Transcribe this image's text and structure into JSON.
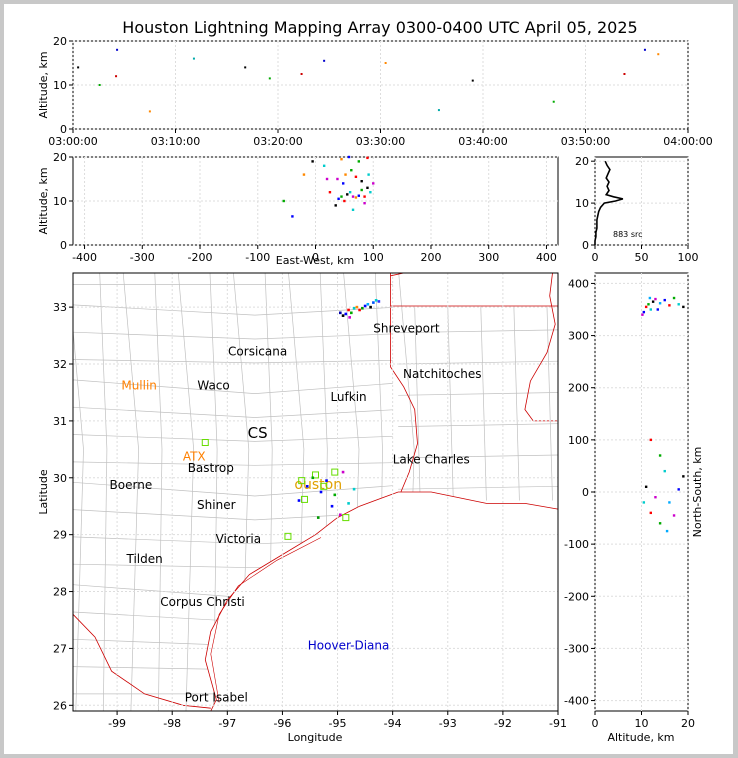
{
  "title": "Houston Lightning Mapping Array 0300-0400 UTC April 05, 2025",
  "colors": {
    "state_lines": "#cc0000",
    "county_lines": "#c0c0c0",
    "city_default": "#000000",
    "city_orange": "#ff8000",
    "city_blue": "#0000cc",
    "station": "#66dd00",
    "houston": "#e0a000"
  },
  "chart_data": [
    {
      "id": "time-altitude",
      "type": "scatter",
      "xlabel": "",
      "ylabel": "Altitude, km",
      "ylim": [
        0,
        20
      ],
      "yticks": [
        "0",
        "10",
        "20"
      ],
      "xticks": [
        "03:00:00",
        "03:10:00",
        "03:20:00",
        "03:30:00",
        "03:40:00",
        "03:50:00",
        "04:00:00"
      ],
      "xlim_minutes": [
        0,
        60
      ],
      "points": [
        {
          "x": 0.5,
          "y": 14
        },
        {
          "x": 2.6,
          "y": 10
        },
        {
          "x": 4.2,
          "y": 12
        },
        {
          "x": 4.3,
          "y": 18
        },
        {
          "x": 7.5,
          "y": 4
        },
        {
          "x": 11.8,
          "y": 16
        },
        {
          "x": 16.8,
          "y": 14
        },
        {
          "x": 19.2,
          "y": 11.5
        },
        {
          "x": 22.3,
          "y": 12.5
        },
        {
          "x": 24.5,
          "y": 15.5
        },
        {
          "x": 30.5,
          "y": 15
        },
        {
          "x": 35.7,
          "y": 4.3
        },
        {
          "x": 39,
          "y": 11
        },
        {
          "x": 46.9,
          "y": 6.2
        },
        {
          "x": 53.8,
          "y": 12.5
        },
        {
          "x": 55.8,
          "y": 18
        },
        {
          "x": 57.1,
          "y": 17
        }
      ]
    },
    {
      "id": "east-west-altitude",
      "type": "scatter",
      "xlabel": "East-West, km",
      "ylabel": "Altitude, km",
      "xlim": [
        -420,
        420
      ],
      "ylim": [
        0,
        20
      ],
      "xticks": [
        "-400",
        "-300",
        "-200",
        "-100",
        "0",
        "100",
        "200",
        "300",
        "400"
      ],
      "yticks": [
        "0",
        "10",
        "20"
      ],
      "points": [
        {
          "x": 40,
          "y": 10.5
        },
        {
          "x": 45,
          "y": 11
        },
        {
          "x": 50,
          "y": 10
        },
        {
          "x": 55,
          "y": 11.5
        },
        {
          "x": 60,
          "y": 12
        },
        {
          "x": 65,
          "y": 11
        },
        {
          "x": 70,
          "y": 10.8
        },
        {
          "x": 75,
          "y": 11.2
        },
        {
          "x": 80,
          "y": 12.5
        },
        {
          "x": 85,
          "y": 11
        },
        {
          "x": 90,
          "y": 13
        },
        {
          "x": 95,
          "y": 12
        },
        {
          "x": 38,
          "y": 15
        },
        {
          "x": 52,
          "y": 16
        },
        {
          "x": 48,
          "y": 14
        },
        {
          "x": 62,
          "y": 17
        },
        {
          "x": 70,
          "y": 15.5
        },
        {
          "x": 80,
          "y": 14.5
        },
        {
          "x": 92,
          "y": 16
        },
        {
          "x": 100,
          "y": 14
        },
        {
          "x": 45,
          "y": 19.5
        },
        {
          "x": 58,
          "y": 20
        },
        {
          "x": 75,
          "y": 19
        },
        {
          "x": 90,
          "y": 19.8
        },
        {
          "x": -5,
          "y": 19
        },
        {
          "x": 15,
          "y": 18
        },
        {
          "x": 20,
          "y": 15
        },
        {
          "x": -20,
          "y": 16
        },
        {
          "x": -40,
          "y": 6.5
        },
        {
          "x": -55,
          "y": 10
        },
        {
          "x": 25,
          "y": 12
        },
        {
          "x": 35,
          "y": 9
        },
        {
          "x": 65,
          "y": 8
        },
        {
          "x": 85,
          "y": 9.5
        }
      ]
    },
    {
      "id": "altitude-histogram",
      "type": "line",
      "xlim": [
        0,
        100
      ],
      "ylim": [
        0,
        21
      ],
      "xticks": [
        "0",
        "50",
        "100"
      ],
      "yticks": [
        "0",
        "10",
        "20"
      ],
      "annotation": "883 src",
      "altitudes": [
        0,
        1,
        2,
        3,
        4,
        5,
        6,
        7,
        8,
        9,
        10,
        10.5,
        11,
        11.5,
        12,
        13,
        14,
        15,
        16,
        17,
        18,
        19,
        20
      ],
      "counts": [
        0,
        0,
        1,
        1,
        2,
        2,
        2,
        3,
        4,
        6,
        10,
        22,
        30,
        20,
        12,
        15,
        13,
        15,
        12,
        14,
        16,
        13,
        11
      ]
    },
    {
      "id": "plan-view",
      "type": "scatter",
      "xlabel": "Longitude",
      "ylabel": "Latitude",
      "xlim": [
        -99.8,
        -91
      ],
      "ylim": [
        25.9,
        33.6
      ],
      "xticks": [
        "-99",
        "-98",
        "-97",
        "-96",
        "-95",
        "-94",
        "-93",
        "-92",
        "-91"
      ],
      "yticks": [
        "26",
        "27",
        "28",
        "29",
        "30",
        "31",
        "32",
        "33"
      ],
      "points": [
        {
          "x": -94.85,
          "y": 32.88
        },
        {
          "x": -94.8,
          "y": 32.95
        },
        {
          "x": -94.75,
          "y": 32.9
        },
        {
          "x": -94.7,
          "y": 32.98
        },
        {
          "x": -94.9,
          "y": 32.85
        },
        {
          "x": -94.65,
          "y": 33.0
        },
        {
          "x": -94.5,
          "y": 33.02
        },
        {
          "x": -94.45,
          "y": 33.05
        },
        {
          "x": -94.4,
          "y": 33.0
        },
        {
          "x": -94.35,
          "y": 33.08
        },
        {
          "x": -94.3,
          "y": 33.12
        },
        {
          "x": -94.25,
          "y": 33.1
        },
        {
          "x": -94.6,
          "y": 32.95
        },
        {
          "x": -94.55,
          "y": 32.98
        },
        {
          "x": -94.95,
          "y": 32.9
        },
        {
          "x": -94.78,
          "y": 32.82
        },
        {
          "x": -95.2,
          "y": 29.95
        },
        {
          "x": -95.05,
          "y": 29.7
        },
        {
          "x": -95.1,
          "y": 29.5
        },
        {
          "x": -94.95,
          "y": 29.35
        },
        {
          "x": -94.8,
          "y": 29.55
        },
        {
          "x": -95.3,
          "y": 29.75
        },
        {
          "x": -95.35,
          "y": 29.3
        },
        {
          "x": -94.7,
          "y": 29.8
        },
        {
          "x": -95.55,
          "y": 29.85
        },
        {
          "x": -95.7,
          "y": 29.6
        },
        {
          "x": -94.9,
          "y": 30.1
        },
        {
          "x": -95.45,
          "y": 30.0
        }
      ],
      "point_colors": [
        "#0000ff",
        "#ff0000",
        "#00aa00",
        "#00cccc",
        "#000000",
        "#ff8800",
        "#0000ff",
        "#00aaff",
        "#000000",
        "#0055ff",
        "#00cccc",
        "#3333ff",
        "#ff0000",
        "#009900",
        "#0000aa",
        "#cc00cc",
        "#0000ff",
        "#00aa00",
        "#0000ff",
        "#cc00cc",
        "#00cccc",
        "#0000ff",
        "#009900",
        "#00cccc",
        "#0000ff",
        "#0000ff",
        "#cc00cc",
        "#00aa00"
      ],
      "cities": [
        {
          "name": "Shreveport",
          "lon": -93.75,
          "lat": 32.55,
          "color": "city_default"
        },
        {
          "name": "Corsicana",
          "lon": -96.45,
          "lat": 32.15,
          "color": "city_default"
        },
        {
          "name": "Natchitoches",
          "lon": -93.1,
          "lat": 31.75,
          "color": "city_default"
        },
        {
          "name": "Mullin",
          "lon": -98.6,
          "lat": 31.55,
          "color": "city_orange"
        },
        {
          "name": "Waco",
          "lon": -97.25,
          "lat": 31.55,
          "color": "city_default"
        },
        {
          "name": "Lufkin",
          "lon": -94.8,
          "lat": 31.35,
          "color": "city_default"
        },
        {
          "name": "Lake Charles",
          "lon": -93.3,
          "lat": 30.25,
          "color": "city_default"
        },
        {
          "name": "Bastrop",
          "lon": -97.3,
          "lat": 30.1,
          "color": "city_default"
        },
        {
          "name": "Boerne",
          "lon": -98.75,
          "lat": 29.8,
          "color": "city_default"
        },
        {
          "name": "Shiner",
          "lon": -97.2,
          "lat": 29.45,
          "color": "city_default"
        },
        {
          "name": "Victoria",
          "lon": -96.8,
          "lat": 28.85,
          "color": "city_default"
        },
        {
          "name": "Tilden",
          "lon": -98.5,
          "lat": 28.5,
          "color": "city_default"
        },
        {
          "name": "Corpus Christi",
          "lon": -97.45,
          "lat": 27.75,
          "color": "city_default"
        },
        {
          "name": "Hoover-Diana",
          "lon": -94.8,
          "lat": 26.98,
          "color": "city_blue"
        },
        {
          "name": "Port Isabel",
          "lon": -97.2,
          "lat": 26.07,
          "color": "city_default"
        }
      ],
      "radar_labels": [
        {
          "name": "CS",
          "lon": -96.45,
          "lat": 30.7,
          "color": "city_default"
        },
        {
          "name": "ATX",
          "lon": -97.6,
          "lat": 30.3,
          "color": "city_orange"
        },
        {
          "name": "ouston",
          "lon": -95.35,
          "lat": 29.8,
          "color": "houston"
        }
      ],
      "stations": [
        {
          "lon": -97.4,
          "lat": 30.62
        },
        {
          "lon": -95.65,
          "lat": 29.95
        },
        {
          "lon": -95.6,
          "lat": 29.62
        },
        {
          "lon": -95.4,
          "lat": 30.05
        },
        {
          "lon": -95.25,
          "lat": 29.85
        },
        {
          "lon": -95.05,
          "lat": 30.1
        },
        {
          "lon": -94.85,
          "lat": 29.3
        },
        {
          "lon": -95.9,
          "lat": 28.97
        }
      ]
    },
    {
      "id": "altitude-north-south",
      "type": "scatter",
      "xlabel": "Altitude, km",
      "ylabel": "North-South, km",
      "xlim": [
        0,
        20
      ],
      "ylim": [
        -420,
        420
      ],
      "xticks": [
        "0",
        "10",
        "20"
      ],
      "yticks": [
        "-400",
        "-300",
        "-200",
        "-100",
        "0",
        "100",
        "200",
        "300",
        "400"
      ],
      "points": [
        {
          "x": 10.5,
          "y": 345
        },
        {
          "x": 11,
          "y": 355
        },
        {
          "x": 11.5,
          "y": 360
        },
        {
          "x": 12,
          "y": 350
        },
        {
          "x": 12.5,
          "y": 365
        },
        {
          "x": 13,
          "y": 370
        },
        {
          "x": 14,
          "y": 362
        },
        {
          "x": 15,
          "y": 368
        },
        {
          "x": 16,
          "y": 358
        },
        {
          "x": 17,
          "y": 372
        },
        {
          "x": 18,
          "y": 360
        },
        {
          "x": 19,
          "y": 355
        },
        {
          "x": 10.2,
          "y": 340
        },
        {
          "x": 11.8,
          "y": 372
        },
        {
          "x": 13.5,
          "y": 350
        },
        {
          "x": 12,
          "y": 100
        },
        {
          "x": 14,
          "y": 70
        },
        {
          "x": 15,
          "y": 40
        },
        {
          "x": 11,
          "y": 10
        },
        {
          "x": 13,
          "y": -10
        },
        {
          "x": 16,
          "y": -20
        },
        {
          "x": 18,
          "y": 5
        },
        {
          "x": 12,
          "y": -40
        },
        {
          "x": 14,
          "y": -60
        },
        {
          "x": 10.5,
          "y": -20
        },
        {
          "x": 19,
          "y": 30
        },
        {
          "x": 17,
          "y": -45
        },
        {
          "x": 15.5,
          "y": -75
        }
      ]
    }
  ]
}
